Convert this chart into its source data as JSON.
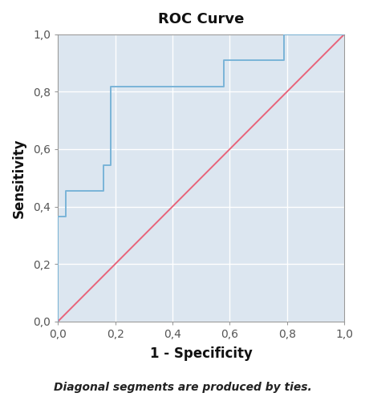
{
  "title": "ROC Curve",
  "xlabel": "1 - Specificity",
  "ylabel": "Sensitivity",
  "footnote": "Diagonal segments are produced by ties.",
  "xlim": [
    0.0,
    1.0
  ],
  "ylim": [
    0.0,
    1.0
  ],
  "xtick_vals": [
    0.0,
    0.2,
    0.4,
    0.6,
    0.8,
    1.0
  ],
  "ytick_vals": [
    0.0,
    0.2,
    0.4,
    0.6,
    0.8,
    1.0
  ],
  "xtick_labels": [
    "0,0",
    "0,2",
    "0,4",
    "0,6",
    "0,8",
    "1,0"
  ],
  "ytick_labels": [
    "0,0",
    "0,2",
    "0,4",
    "0,6",
    "0,8",
    "1,0"
  ],
  "roc_x": [
    0.0,
    0.0,
    0.0,
    0.026,
    0.026,
    0.158,
    0.158,
    0.184,
    0.184,
    0.395,
    0.395,
    0.579,
    0.579,
    0.789,
    0.789,
    0.789,
    1.0
  ],
  "roc_y": [
    0.0,
    0.182,
    0.364,
    0.364,
    0.455,
    0.455,
    0.545,
    0.545,
    0.818,
    0.818,
    0.818,
    0.818,
    0.909,
    0.909,
    0.909,
    1.0,
    1.0
  ],
  "roc_color": "#7ab4d8",
  "diag_color": "#e8647a",
  "fig_background_color": "#ffffff",
  "plot_background_color": "#dce6f0",
  "grid_color": "#ffffff",
  "grid_linewidth": 1.0,
  "title_fontsize": 13,
  "label_fontsize": 12,
  "tick_fontsize": 10,
  "footnote_fontsize": 10,
  "roc_linewidth": 1.4,
  "diag_linewidth": 1.4,
  "spine_color": "#999999",
  "tick_color": "#555555"
}
